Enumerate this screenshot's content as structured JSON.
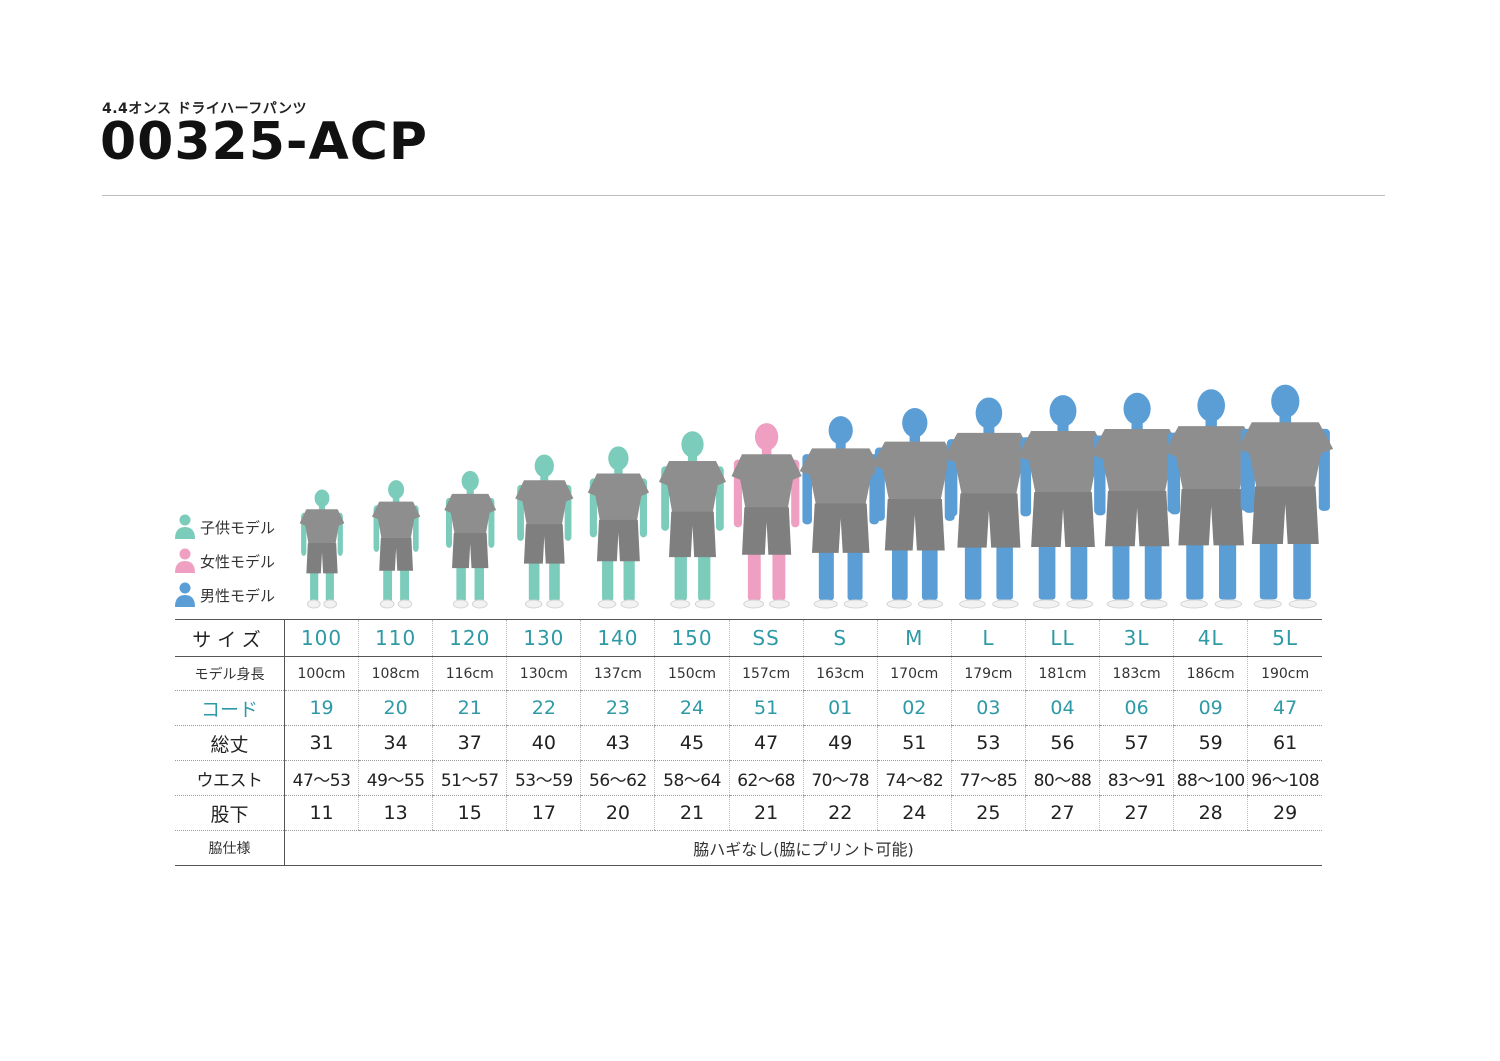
{
  "header": {
    "subtitle": "4.4オンス ドライハーフパンツ",
    "title": "00325-ACP"
  },
  "colors": {
    "child": "#7cccbb",
    "female": "#ef9fc1",
    "male": "#5b9ed6",
    "garment": "#8e8e8e",
    "accent": "#2d9aa6"
  },
  "legend": [
    {
      "label": "子供モデル",
      "type": "child"
    },
    {
      "label": "女性モデル",
      "type": "female"
    },
    {
      "label": "男性モデル",
      "type": "male"
    }
  ],
  "table": {
    "row_labels": {
      "size": "サイズ",
      "model_height": "モデル身長",
      "code": "コード",
      "length": "総丈",
      "waist": "ウエスト",
      "inseam": "股下",
      "side": "脇仕様"
    },
    "columns": [
      {
        "size": "100",
        "model_height": "100cm",
        "code": "19",
        "length": "31",
        "waist": "47〜53",
        "inseam": "11",
        "model": "child"
      },
      {
        "size": "110",
        "model_height": "108cm",
        "code": "20",
        "length": "34",
        "waist": "49〜55",
        "inseam": "13",
        "model": "child"
      },
      {
        "size": "120",
        "model_height": "116cm",
        "code": "21",
        "length": "37",
        "waist": "51〜57",
        "inseam": "15",
        "model": "child"
      },
      {
        "size": "130",
        "model_height": "130cm",
        "code": "22",
        "length": "40",
        "waist": "53〜59",
        "inseam": "17",
        "model": "child"
      },
      {
        "size": "140",
        "model_height": "137cm",
        "code": "23",
        "length": "43",
        "waist": "56〜62",
        "inseam": "20",
        "model": "child"
      },
      {
        "size": "150",
        "model_height": "150cm",
        "code": "24",
        "length": "45",
        "waist": "58〜64",
        "inseam": "21",
        "model": "child"
      },
      {
        "size": "SS",
        "model_height": "157cm",
        "code": "51",
        "length": "47",
        "waist": "62〜68",
        "inseam": "21",
        "model": "female"
      },
      {
        "size": "S",
        "model_height": "163cm",
        "code": "01",
        "length": "49",
        "waist": "70〜78",
        "inseam": "22",
        "model": "male"
      },
      {
        "size": "M",
        "model_height": "170cm",
        "code": "02",
        "length": "51",
        "waist": "74〜82",
        "inseam": "24",
        "model": "male"
      },
      {
        "size": "L",
        "model_height": "179cm",
        "code": "03",
        "length": "53",
        "waist": "77〜85",
        "inseam": "25",
        "model": "male"
      },
      {
        "size": "LL",
        "model_height": "181cm",
        "code": "04",
        "length": "56",
        "waist": "80〜88",
        "inseam": "27",
        "model": "male"
      },
      {
        "size": "3L",
        "model_height": "183cm",
        "code": "06",
        "length": "57",
        "waist": "83〜91",
        "inseam": "27",
        "model": "male"
      },
      {
        "size": "4L",
        "model_height": "186cm",
        "code": "09",
        "length": "59",
        "waist": "88〜100",
        "inseam": "28",
        "model": "male"
      },
      {
        "size": "5L",
        "model_height": "190cm",
        "code": "47",
        "length": "61",
        "waist": "96〜108",
        "inseam": "29",
        "model": "male"
      }
    ],
    "side_spec": "脇ハギなし(脇にプリント可能)"
  }
}
